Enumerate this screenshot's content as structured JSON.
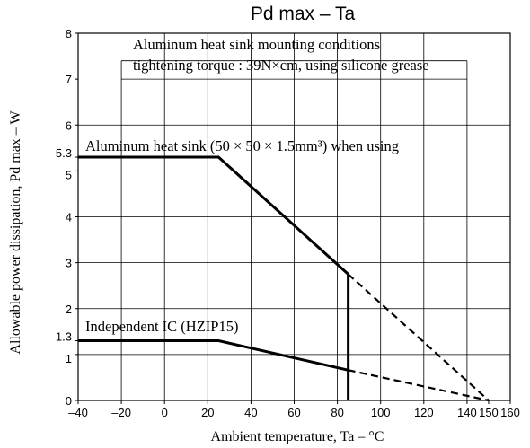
{
  "chart_data": {
    "type": "line",
    "title": "Pd max – Ta",
    "xlabel": "Ambient temperature, Ta  –  °C",
    "ylabel": "Allowable power dissipation, Pd max – W",
    "xlim": [
      -40,
      160
    ],
    "ylim": [
      0,
      8
    ],
    "x_ticks": [
      -40,
      -20,
      0,
      20,
      40,
      60,
      80,
      100,
      120,
      140,
      150,
      160
    ],
    "x_tick_labels": [
      "–40",
      "–20",
      "0",
      "20",
      "40",
      "60",
      "80",
      "100",
      "120",
      "140",
      "150",
      "160"
    ],
    "y_ticks": [
      0,
      1,
      1.3,
      2,
      3,
      4,
      5,
      5.3,
      6,
      7,
      8
    ],
    "y_tick_labels": [
      "0",
      "1",
      "1.3",
      "2",
      "3",
      "4",
      "5",
      "5.3",
      "6",
      "7",
      "8"
    ],
    "x_grid": [
      -20,
      0,
      20,
      40,
      60,
      80,
      100,
      120,
      140
    ],
    "y_grid": [
      1,
      2,
      3,
      4,
      5,
      6,
      7
    ],
    "grid": true,
    "series": [
      {
        "name": "Aluminum heat sink (50 × 50 × 1.5mm³) when using",
        "x": [
          -40,
          25,
          85
        ],
        "y": [
          5.3,
          5.3,
          2.75
        ],
        "extrapolated": {
          "x": [
            85,
            150
          ],
          "y": [
            2.75,
            0
          ]
        }
      },
      {
        "name": "Independent IC (HZIP15)",
        "x": [
          -40,
          25,
          85
        ],
        "y": [
          1.3,
          1.3,
          0.66
        ],
        "extrapolated": {
          "x": [
            85,
            150
          ],
          "y": [
            0.66,
            0
          ]
        }
      }
    ],
    "vertical_marker": {
      "x": 85,
      "y_from": 0,
      "y_to": 2.75
    },
    "annotations": [
      "Aluminum heat sink mounting conditions",
      "tightening torque : 39N×cm, using silicone grease"
    ]
  }
}
